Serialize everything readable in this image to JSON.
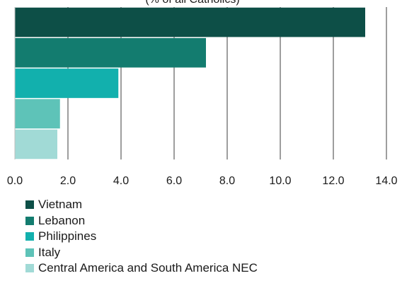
{
  "chart_data": {
    "type": "bar",
    "orientation": "horizontal",
    "subtitle": "(% of all Catholics)",
    "categories": [
      "Vietnam",
      "Lebanon",
      "Philippines",
      "Italy",
      "Central America and South America NEC"
    ],
    "values": [
      13.2,
      7.2,
      3.9,
      1.7,
      1.6
    ],
    "colors": [
      "#0d4f47",
      "#137c6f",
      "#12b0ad",
      "#5ec3b8",
      "#a1dad6"
    ],
    "xlim": [
      0,
      14
    ],
    "xticks": [
      "0.0",
      "2.0",
      "4.0",
      "6.0",
      "8.0",
      "10.0",
      "12.0",
      "14.0"
    ],
    "grid": true,
    "legend_position": "bottom"
  }
}
